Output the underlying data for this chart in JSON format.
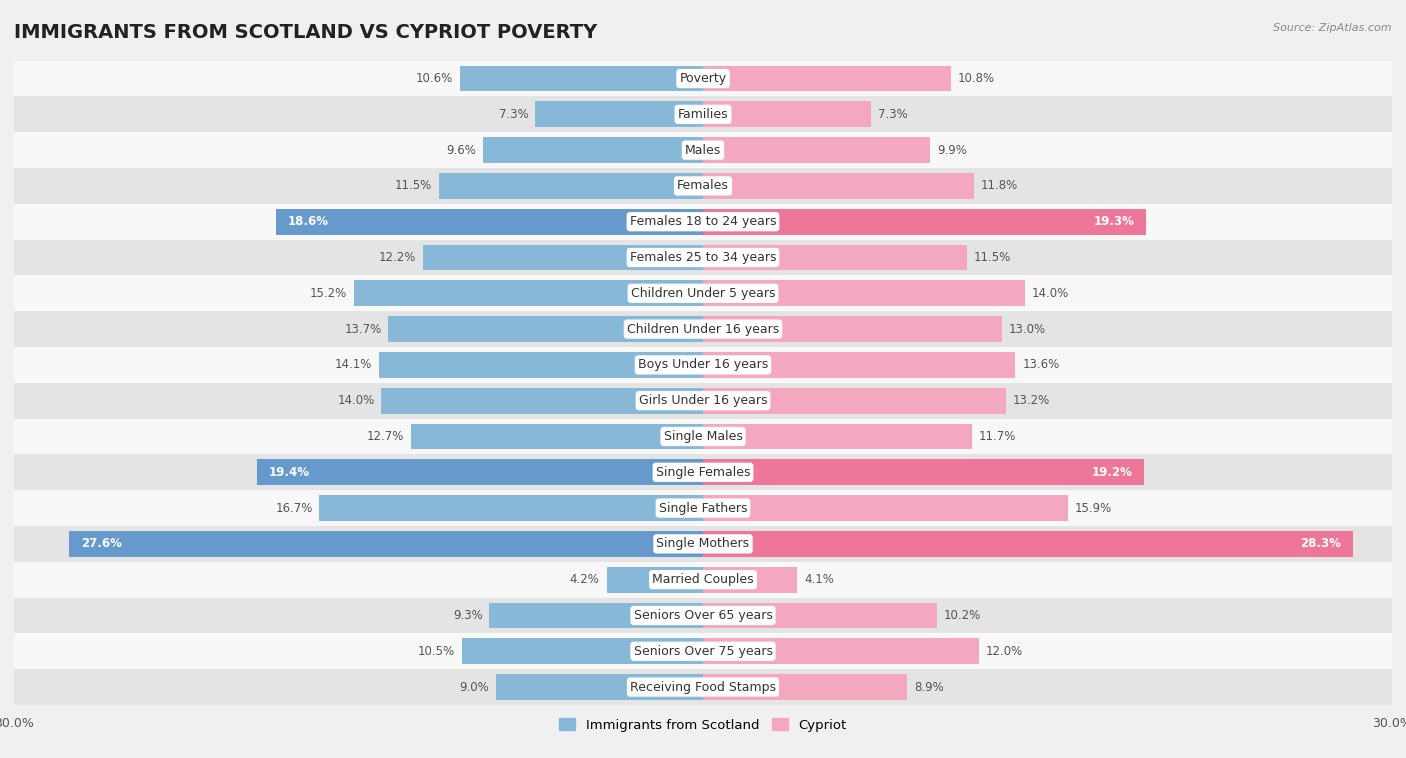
{
  "title": "IMMIGRANTS FROM SCOTLAND VS CYPRIOT POVERTY",
  "source": "Source: ZipAtlas.com",
  "categories": [
    "Poverty",
    "Families",
    "Males",
    "Females",
    "Females 18 to 24 years",
    "Females 25 to 34 years",
    "Children Under 5 years",
    "Children Under 16 years",
    "Boys Under 16 years",
    "Girls Under 16 years",
    "Single Males",
    "Single Females",
    "Single Fathers",
    "Single Mothers",
    "Married Couples",
    "Seniors Over 65 years",
    "Seniors Over 75 years",
    "Receiving Food Stamps"
  ],
  "scotland_values": [
    10.6,
    7.3,
    9.6,
    11.5,
    18.6,
    12.2,
    15.2,
    13.7,
    14.1,
    14.0,
    12.7,
    19.4,
    16.7,
    27.6,
    4.2,
    9.3,
    10.5,
    9.0
  ],
  "cypriot_values": [
    10.8,
    7.3,
    9.9,
    11.8,
    19.3,
    11.5,
    14.0,
    13.0,
    13.6,
    13.2,
    11.7,
    19.2,
    15.9,
    28.3,
    4.1,
    10.2,
    12.0,
    8.9
  ],
  "scotland_color": "#88b8d8",
  "cypriot_color": "#f4a8c0",
  "scotland_highlight_color": "#6699cc",
  "cypriot_highlight_color": "#ee7799",
  "highlight_rows": [
    4,
    11,
    13
  ],
  "background_color": "#f0f0f0",
  "row_light_color": "#f8f8f8",
  "row_dark_color": "#e4e4e4",
  "axis_limit": 30.0,
  "bar_height": 0.72,
  "legend_labels": [
    "Immigrants from Scotland",
    "Cypriot"
  ],
  "title_fontsize": 14,
  "label_fontsize": 9,
  "value_fontsize": 8.5
}
